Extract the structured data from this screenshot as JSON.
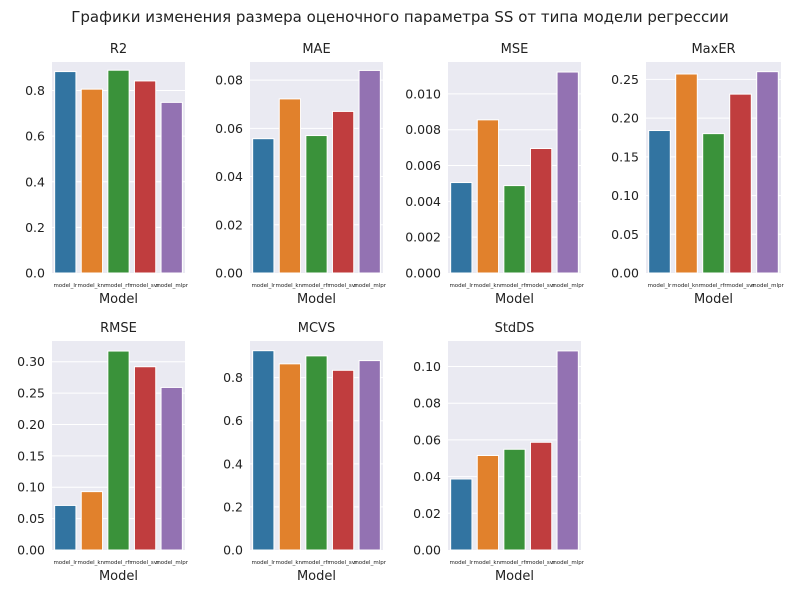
{
  "figure": {
    "title": "Графики изменения размера оценочного параметра SS от типа модели регрессии"
  },
  "chart_data": [
    {
      "type": "bar",
      "title": "R2",
      "xlabel": "Model",
      "categories": [
        "model_lr",
        "model_knr",
        "model_rfr",
        "model_svr",
        "model_mlpr"
      ],
      "values": [
        0.883,
        0.806,
        0.889,
        0.842,
        0.748
      ],
      "ylim": [
        0,
        0.925
      ],
      "yticks": [
        "0.0",
        "0.2",
        "0.4",
        "0.6",
        "0.8"
      ],
      "ytick_values": [
        0,
        0.2,
        0.4,
        0.6,
        0.8
      ],
      "colors": [
        "#3274a1",
        "#e1812c",
        "#3a923a",
        "#c03d3e",
        "#9372b2"
      ],
      "background": "#eaeaf2",
      "grid": true
    },
    {
      "type": "bar",
      "title": "MAE",
      "xlabel": "Model",
      "categories": [
        "model_lr",
        "model_knr",
        "model_rfr",
        "model_svr",
        "model_mlpr"
      ],
      "values": [
        0.0557,
        0.0722,
        0.057,
        0.067,
        0.084
      ],
      "ylim": [
        0,
        0.0875
      ],
      "yticks": [
        "0.00",
        "0.02",
        "0.04",
        "0.06",
        "0.08"
      ],
      "ytick_values": [
        0,
        0.02,
        0.04,
        0.06,
        0.08
      ],
      "colors": [
        "#3274a1",
        "#e1812c",
        "#3a923a",
        "#c03d3e",
        "#9372b2"
      ],
      "background": "#eaeaf2",
      "grid": true
    },
    {
      "type": "bar",
      "title": "MSE",
      "xlabel": "Model",
      "categories": [
        "model_lr",
        "model_knr",
        "model_rfr",
        "model_svr",
        "model_mlpr"
      ],
      "values": [
        0.00505,
        0.00855,
        0.00488,
        0.00695,
        0.01122
      ],
      "ylim": [
        0,
        0.01178
      ],
      "yticks": [
        "0.000",
        "0.002",
        "0.004",
        "0.006",
        "0.008",
        "0.010"
      ],
      "ytick_values": [
        0,
        0.002,
        0.004,
        0.006,
        0.008,
        0.01
      ],
      "colors": [
        "#3274a1",
        "#e1812c",
        "#3a923a",
        "#c03d3e",
        "#9372b2"
      ],
      "background": "#eaeaf2",
      "grid": true
    },
    {
      "type": "bar",
      "title": "MaxER",
      "xlabel": "Model",
      "categories": [
        "model_lr",
        "model_knr",
        "model_rfr",
        "model_svr",
        "model_mlpr"
      ],
      "values": [
        0.184,
        0.257,
        0.18,
        0.231,
        0.26
      ],
      "ylim": [
        0,
        0.2725
      ],
      "yticks": [
        "0.00",
        "0.05",
        "0.10",
        "0.15",
        "0.20",
        "0.25"
      ],
      "ytick_values": [
        0,
        0.05,
        0.1,
        0.15,
        0.2,
        0.25
      ],
      "colors": [
        "#3274a1",
        "#e1812c",
        "#3a923a",
        "#c03d3e",
        "#9372b2"
      ],
      "background": "#eaeaf2",
      "grid": true
    },
    {
      "type": "bar",
      "title": "RMSE",
      "xlabel": "Model",
      "categories": [
        "model_lr",
        "model_knr",
        "model_rfr",
        "model_svr",
        "model_mlpr"
      ],
      "values": [
        0.071,
        0.093,
        0.317,
        0.292,
        0.259
      ],
      "ylim": [
        0,
        0.333
      ],
      "yticks": [
        "0.00",
        "0.05",
        "0.10",
        "0.15",
        "0.20",
        "0.25",
        "0.30"
      ],
      "ytick_values": [
        0,
        0.05,
        0.1,
        0.15,
        0.2,
        0.25,
        0.3
      ],
      "colors": [
        "#3274a1",
        "#e1812c",
        "#3a923a",
        "#c03d3e",
        "#9372b2"
      ],
      "background": "#eaeaf2",
      "grid": true
    },
    {
      "type": "bar",
      "title": "MCVS",
      "xlabel": "Model",
      "categories": [
        "model_lr",
        "model_knr",
        "model_rfr",
        "model_svr",
        "model_mlpr"
      ],
      "values": [
        0.925,
        0.864,
        0.901,
        0.834,
        0.879
      ],
      "ylim": [
        0,
        0.97
      ],
      "yticks": [
        "0.0",
        "0.2",
        "0.4",
        "0.6",
        "0.8"
      ],
      "ytick_values": [
        0,
        0.2,
        0.4,
        0.6,
        0.8
      ],
      "colors": [
        "#3274a1",
        "#e1812c",
        "#3a923a",
        "#c03d3e",
        "#9372b2"
      ],
      "background": "#eaeaf2",
      "grid": true
    },
    {
      "type": "bar",
      "title": "StdDS",
      "xlabel": "Model",
      "categories": [
        "model_lr",
        "model_knr",
        "model_rfr",
        "model_svr",
        "model_mlpr"
      ],
      "values": [
        0.0387,
        0.0515,
        0.0549,
        0.0587,
        0.1085
      ],
      "ylim": [
        0,
        0.1139
      ],
      "yticks": [
        "0.00",
        "0.02",
        "0.04",
        "0.06",
        "0.08",
        "0.10"
      ],
      "ytick_values": [
        0,
        0.02,
        0.04,
        0.06,
        0.08,
        0.1
      ],
      "colors": [
        "#3274a1",
        "#e1812c",
        "#3a923a",
        "#c03d3e",
        "#9372b2"
      ],
      "background": "#eaeaf2",
      "grid": true
    }
  ]
}
